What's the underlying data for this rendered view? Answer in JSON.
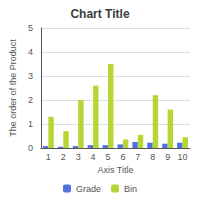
{
  "chart_data": {
    "type": "bar",
    "title": "Chart Title",
    "xlabel": "Axis Title",
    "ylabel": "The order of the Product",
    "categories": [
      "1",
      "2",
      "3",
      "4",
      "5",
      "6",
      "7",
      "8",
      "9",
      "10"
    ],
    "series": [
      {
        "name": "Grade",
        "values": [
          0.08,
          0.05,
          0.08,
          0.12,
          0.12,
          0.15,
          0.25,
          0.22,
          0.18,
          0.22
        ]
      },
      {
        "name": "Bin",
        "values": [
          1.3,
          0.7,
          2.0,
          2.6,
          3.5,
          0.35,
          0.55,
          2.2,
          1.6,
          0.45
        ]
      }
    ],
    "ylim": [
      0,
      5
    ],
    "yticks": [
      0,
      1,
      2,
      3,
      4,
      5
    ],
    "grid": true,
    "legend": "bottom"
  }
}
